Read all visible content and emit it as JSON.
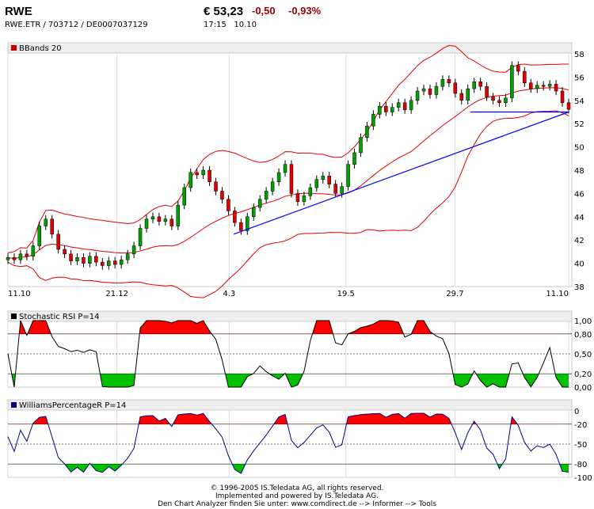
{
  "header": {
    "title": "RWE",
    "identifiers": "RWE.ETR / 703712 / DE0007037129",
    "price": "€ 53,23",
    "change": "-0,50",
    "change_pct": "-0,93%",
    "time": "17:15",
    "date": "10.10"
  },
  "footer": [
    "© 1996-2005 IS.Teledata AG, all rights reserved.",
    "Implemented and powered by IS.Teledata AG.",
    "Den Chart Analyzer finden Sie unter: www.comdirect.de --> Informer --> Tools"
  ],
  "colors": {
    "up": "#00a000",
    "down": "#e00000",
    "bands": "#e00000",
    "trend": "#0000ff",
    "stoch": "#000000",
    "williams": "#000080",
    "fill_high": "#ff0000",
    "fill_low": "#00c000"
  },
  "chart_data": [
    {
      "type": "candlestick",
      "legend": "BBands 20",
      "legend_color": "#cc0000",
      "ylim": [
        38,
        58
      ],
      "yticks": [
        38,
        40,
        42,
        44,
        46,
        48,
        50,
        52,
        54,
        56,
        58
      ],
      "xticks": [
        {
          "label": "11.10",
          "date": "2004-10-11"
        },
        {
          "label": "21.12",
          "date": "2004-12-21"
        },
        {
          "label": "4.3",
          "date": "2005-03-04"
        },
        {
          "label": "19.5",
          "date": "2005-05-19"
        },
        {
          "label": "29.7",
          "date": "2005-07-29"
        },
        {
          "label": "11.10",
          "date": "2005-10-11"
        }
      ],
      "start_date": "2004-10-11",
      "end_date": "2005-10-11",
      "closes": [
        40.5,
        40.3,
        40.8,
        40.6,
        41.5,
        43.2,
        43.8,
        42.5,
        41.2,
        40.8,
        40.2,
        40.5,
        40.0,
        40.6,
        40.1,
        39.8,
        40.2,
        39.9,
        40.3,
        40.8,
        41.5,
        43.0,
        43.8,
        44.0,
        43.6,
        43.8,
        43.2,
        45.0,
        46.5,
        47.8,
        47.6,
        48.0,
        47.0,
        46.2,
        45.5,
        44.5,
        43.5,
        42.8,
        44.0,
        44.8,
        45.5,
        46.2,
        47.0,
        47.8,
        48.5,
        46.0,
        45.3,
        45.8,
        46.5,
        47.2,
        47.5,
        46.8,
        46.0,
        46.6,
        48.5,
        49.5,
        50.8,
        51.8,
        52.8,
        53.5,
        53.0,
        53.4,
        53.8,
        53.2,
        54.0,
        54.8,
        55.0,
        54.5,
        55.2,
        55.8,
        55.5,
        54.6,
        54.0,
        55.0,
        55.6,
        55.2,
        54.3,
        54.0,
        53.8,
        54.2,
        57.0,
        56.5,
        55.5,
        55.0,
        55.3,
        55.2,
        55.4,
        54.8,
        53.8,
        53.23
      ],
      "bands_period": 20,
      "lines": [
        {
          "from": {
            "date": "2005-03-07",
            "value": 42.5
          },
          "to": {
            "date": "2005-10-11",
            "value": 53.0
          }
        },
        {
          "from": {
            "date": "2005-08-08",
            "value": 53.0
          },
          "to": {
            "date": "2005-10-11",
            "value": 53.0
          }
        }
      ]
    },
    {
      "type": "line",
      "legend": "Stochastic RSI P=14",
      "legend_color": "#000000",
      "ylim": [
        0,
        1
      ],
      "ytick_labels": [
        "1,00",
        "0,80",
        "0,50",
        "0,20",
        "0,00"
      ],
      "yticks": [
        1,
        0.8,
        0.5,
        0.2,
        0
      ],
      "period": 14
    },
    {
      "type": "line",
      "legend": "WilliamsPercentageR P=14",
      "legend_color": "#000080",
      "ylim": [
        -100,
        0
      ],
      "ytick_labels": [
        "0",
        "-20",
        "-50",
        "-80",
        "-100"
      ],
      "yticks": [
        0,
        -20,
        -50,
        -80,
        -100
      ],
      "period": 14
    }
  ]
}
